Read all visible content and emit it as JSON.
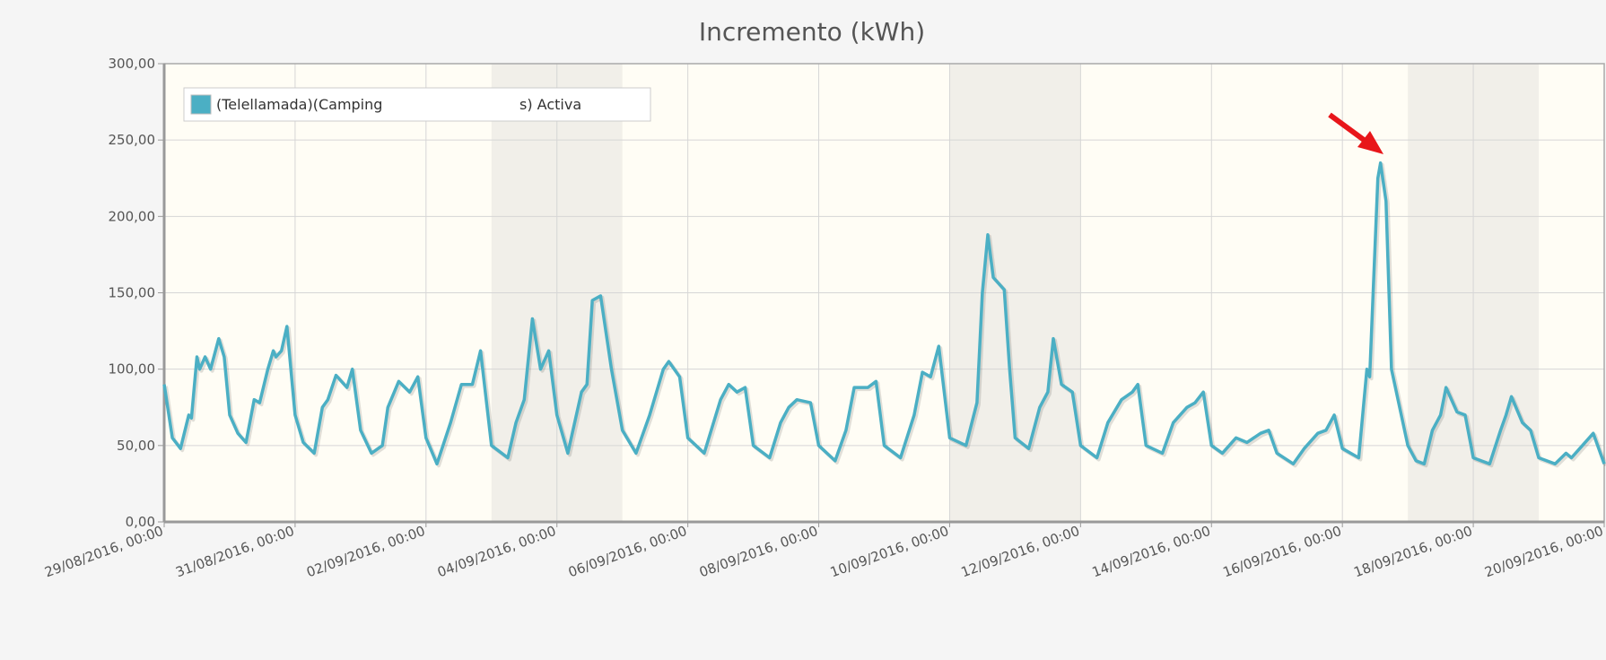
{
  "chart_data": {
    "type": "line",
    "title": "Incremento (kWh)",
    "xlim": [
      "29/08/2016, 00:00",
      "20/09/2016, 00:00"
    ],
    "xticks": [
      "29/08/2016, 00:00",
      "31/08/2016, 00:00",
      "02/09/2016, 00:00",
      "04/09/2016, 00:00",
      "06/09/2016, 00:00",
      "08/09/2016, 00:00",
      "10/09/2016, 00:00",
      "12/09/2016, 00:00",
      "14/09/2016, 00:00",
      "16/09/2016, 00:00",
      "18/09/2016, 00:00",
      "20/09/2016, 00:00"
    ],
    "ylim": [
      0,
      300
    ],
    "yticks": [
      {
        "value": 0,
        "label": "0,00"
      },
      {
        "value": 50,
        "label": "50,00"
      },
      {
        "value": 100,
        "label": "100,00"
      },
      {
        "value": 150,
        "label": "150,00"
      },
      {
        "value": 200,
        "label": "200,00"
      },
      {
        "value": 250,
        "label": "250,00"
      },
      {
        "value": 300,
        "label": "300,00"
      }
    ],
    "grid": true,
    "legend": "top-left",
    "shaded_ranges": [
      [
        "03/09/2016, 00:00",
        "05/09/2016, 00:00"
      ],
      [
        "10/09/2016, 00:00",
        "12/09/2016, 00:00"
      ],
      [
        "17/09/2016, 00:00",
        "19/09/2016, 00:00"
      ]
    ],
    "x": [
      "29/08/2016, 00:00",
      "29/08/2016, 03:00",
      "29/08/2016, 06:00",
      "29/08/2016, 09:00",
      "29/08/2016, 10:00",
      "29/08/2016, 12:00",
      "29/08/2016, 13:00",
      "29/08/2016, 15:00",
      "29/08/2016, 17:00",
      "29/08/2016, 20:00",
      "29/08/2016, 22:00",
      "30/08/2016, 00:00",
      "30/08/2016, 03:00",
      "30/08/2016, 06:00",
      "30/08/2016, 09:00",
      "30/08/2016, 11:00",
      "30/08/2016, 14:00",
      "30/08/2016, 16:00",
      "30/08/2016, 17:00",
      "30/08/2016, 19:00",
      "30/08/2016, 21:00",
      "31/08/2016, 00:00",
      "31/08/2016, 03:00",
      "31/08/2016, 07:00",
      "31/08/2016, 10:00",
      "31/08/2016, 12:00",
      "31/08/2016, 15:00",
      "31/08/2016, 19:00",
      "31/08/2016, 21:00",
      "01/09/2016, 00:00",
      "01/09/2016, 04:00",
      "01/09/2016, 08:00",
      "01/09/2016, 10:00",
      "01/09/2016, 14:00",
      "01/09/2016, 18:00",
      "01/09/2016, 21:00",
      "02/09/2016, 00:00",
      "02/09/2016, 04:00",
      "02/09/2016, 09:00",
      "02/09/2016, 13:00",
      "02/09/2016, 17:00",
      "02/09/2016, 20:00",
      "03/09/2016, 00:00",
      "03/09/2016, 06:00",
      "03/09/2016, 09:00",
      "03/09/2016, 12:00",
      "03/09/2016, 15:00",
      "03/09/2016, 18:00",
      "03/09/2016, 21:00",
      "04/09/2016, 00:00",
      "04/09/2016, 04:00",
      "04/09/2016, 09:00",
      "04/09/2016, 11:00",
      "04/09/2016, 13:00",
      "04/09/2016, 16:00",
      "04/09/2016, 20:00",
      "05/09/2016, 00:00",
      "05/09/2016, 05:00",
      "05/09/2016, 10:00",
      "05/09/2016, 15:00",
      "05/09/2016, 17:00",
      "05/09/2016, 21:00",
      "06/09/2016, 00:00",
      "06/09/2016, 06:00",
      "06/09/2016, 12:00",
      "06/09/2016, 15:00",
      "06/09/2016, 18:00",
      "06/09/2016, 21:00",
      "07/09/2016, 00:00",
      "07/09/2016, 06:00",
      "07/09/2016, 10:00",
      "07/09/2016, 13:00",
      "07/09/2016, 16:00",
      "07/09/2016, 21:00",
      "08/09/2016, 00:00",
      "08/09/2016, 06:00",
      "08/09/2016, 10:00",
      "08/09/2016, 13:00",
      "08/09/2016, 18:00",
      "08/09/2016, 21:00",
      "09/09/2016, 00:00",
      "09/09/2016, 06:00",
      "09/09/2016, 11:00",
      "09/09/2016, 14:00",
      "09/09/2016, 17:00",
      "09/09/2016, 20:00",
      "10/09/2016, 00:00",
      "10/09/2016, 06:00",
      "10/09/2016, 10:00",
      "10/09/2016, 12:00",
      "10/09/2016, 14:00",
      "10/09/2016, 16:00",
      "10/09/2016, 20:00",
      "10/09/2016, 22:00",
      "11/09/2016, 00:00",
      "11/09/2016, 05:00",
      "11/09/2016, 09:00",
      "11/09/2016, 12:00",
      "11/09/2016, 14:00",
      "11/09/2016, 17:00",
      "11/09/2016, 21:00",
      "12/09/2016, 00:00",
      "12/09/2016, 06:00",
      "12/09/2016, 10:00",
      "12/09/2016, 15:00",
      "12/09/2016, 19:00",
      "12/09/2016, 21:00",
      "13/09/2016, 00:00",
      "13/09/2016, 06:00",
      "13/09/2016, 10:00",
      "13/09/2016, 15:00",
      "13/09/2016, 18:00",
      "13/09/2016, 21:00",
      "14/09/2016, 00:00",
      "14/09/2016, 04:00",
      "14/09/2016, 09:00",
      "14/09/2016, 13:00",
      "14/09/2016, 18:00",
      "14/09/2016, 21:00",
      "15/09/2016, 00:00",
      "15/09/2016, 06:00",
      "15/09/2016, 10:00",
      "15/09/2016, 15:00",
      "15/09/2016, 18:00",
      "15/09/2016, 21:00",
      "16/09/2016, 00:00",
      "16/09/2016, 06:00",
      "16/09/2016, 09:00",
      "16/09/2016, 10:00",
      "16/09/2016, 13:00",
      "16/09/2016, 14:00",
      "16/09/2016, 16:00",
      "16/09/2016, 18:00",
      "16/09/2016, 21:00",
      "17/09/2016, 00:00",
      "17/09/2016, 03:00",
      "17/09/2016, 06:00",
      "17/09/2016, 09:00",
      "17/09/2016, 12:00",
      "17/09/2016, 14:00",
      "17/09/2016, 18:00",
      "17/09/2016, 21:00",
      "18/09/2016, 00:00",
      "18/09/2016, 06:00",
      "18/09/2016, 10:00",
      "18/09/2016, 12:00",
      "18/09/2016, 14:00",
      "18/09/2016, 18:00",
      "18/09/2016, 21:00",
      "19/09/2016, 00:00",
      "19/09/2016, 06:00",
      "19/09/2016, 10:00",
      "19/09/2016, 12:00",
      "19/09/2016, 16:00",
      "19/09/2016, 20:00",
      "20/09/2016, 00:00"
    ],
    "series": [
      {
        "name": "(Telellamada)(Camping                              s) Activa",
        "color": "#4bafc4",
        "values": [
          90,
          55,
          48,
          70,
          68,
          108,
          100,
          108,
          100,
          120,
          108,
          70,
          58,
          52,
          80,
          78,
          100,
          112,
          108,
          112,
          128,
          70,
          52,
          45,
          75,
          80,
          96,
          88,
          100,
          60,
          45,
          50,
          75,
          92,
          85,
          95,
          55,
          38,
          65,
          90,
          90,
          112,
          50,
          42,
          65,
          80,
          133,
          100,
          112,
          70,
          45,
          85,
          90,
          145,
          148,
          100,
          60,
          45,
          70,
          100,
          105,
          95,
          55,
          45,
          80,
          90,
          85,
          88,
          50,
          42,
          65,
          75,
          80,
          78,
          50,
          40,
          60,
          88,
          88,
          92,
          50,
          42,
          70,
          98,
          95,
          115,
          55,
          50,
          78,
          150,
          188,
          160,
          152,
          100,
          55,
          48,
          75,
          85,
          120,
          90,
          85,
          50,
          42,
          65,
          80,
          85,
          90,
          50,
          45,
          65,
          75,
          78,
          85,
          50,
          45,
          55,
          52,
          58,
          60,
          45,
          38,
          48,
          58,
          60,
          70,
          48,
          42,
          100,
          95,
          225,
          235,
          210,
          100,
          75,
          50,
          40,
          38,
          60,
          70,
          88,
          72,
          70,
          42,
          38,
          60,
          70,
          82,
          65,
          60,
          42,
          38,
          45,
          42,
          50,
          58,
          38
        ]
      }
    ]
  }
}
